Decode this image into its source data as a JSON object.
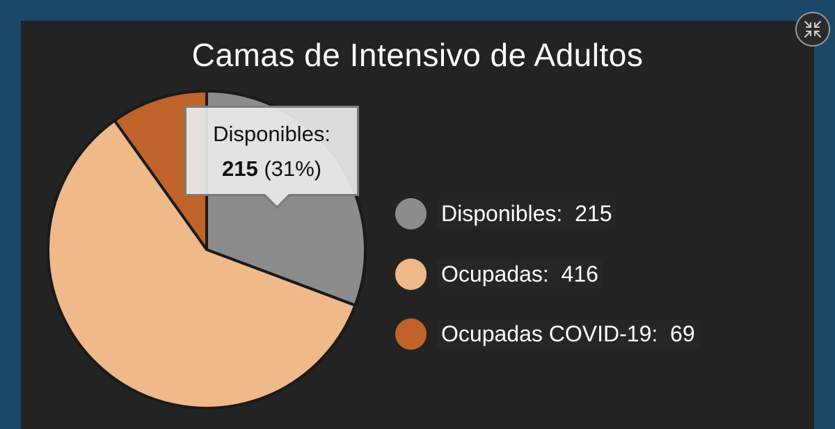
{
  "chart_data": {
    "type": "pie",
    "title": "Camas de Intensivo de Adultos",
    "slices": [
      {
        "label": "Disponibles",
        "value": 215,
        "color": "#8c8c8c"
      },
      {
        "label": "Ocupadas",
        "value": 416,
        "color": "#efb98a"
      },
      {
        "label": "Ocupadas COVID-19",
        "value": 69,
        "color": "#c0632a"
      }
    ],
    "legend_position": "right"
  },
  "legend": [
    {
      "text": "Disponibles:  215"
    },
    {
      "text": "Ocupadas:  416"
    },
    {
      "text": "Ocupadas COVID-19:  69"
    }
  ],
  "tooltip": {
    "label": "Disponibles:",
    "value": "215",
    "percent": "(31%)"
  },
  "controls": {
    "shrink_icon": "minimize-icon"
  },
  "colors": {
    "background": "#1b4868",
    "panel": "#232323"
  }
}
